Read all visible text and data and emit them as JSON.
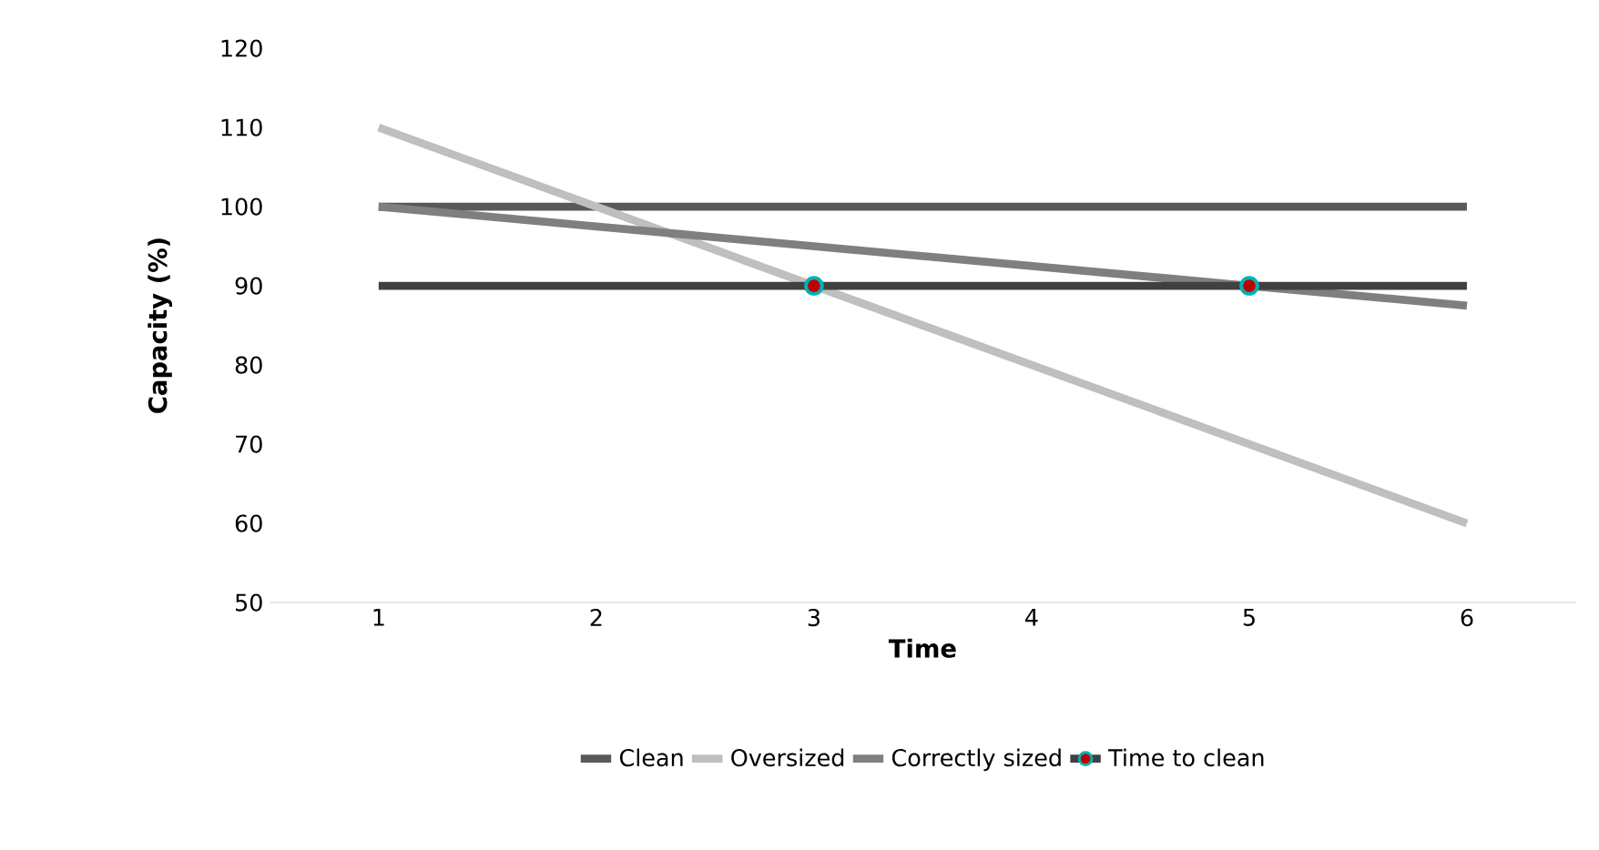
{
  "chart_data": {
    "type": "line",
    "xlabel": "Time",
    "ylabel": "Capacity (%)",
    "categories": [
      "1",
      "2",
      "3",
      "4",
      "5",
      "6"
    ],
    "ylim": [
      50,
      120
    ],
    "yticks": [
      50,
      60,
      70,
      80,
      90,
      100,
      110,
      120
    ],
    "legend": "bottom",
    "marker": "none",
    "series": [
      {
        "name": "Clean",
        "color": "#595959",
        "values": [
          100,
          100,
          100,
          100,
          100,
          100
        ]
      },
      {
        "name": "Oversized",
        "color": "#bfbfbf",
        "values": [
          110,
          100,
          90,
          80,
          70,
          60
        ]
      },
      {
        "name": "Correctly sized",
        "color": "#7f7f7f",
        "values": [
          100,
          97.5,
          95,
          92.5,
          90,
          87.5
        ]
      },
      {
        "name": "Time to clean",
        "color": "#404040",
        "values": [
          90,
          90,
          90,
          90,
          90,
          90
        ]
      },
      {
        "type": "scatter",
        "marker": "circle",
        "color": "#c00000",
        "x": [
          "3",
          "5"
        ],
        "values": [
          90,
          90
        ]
      }
    ]
  }
}
